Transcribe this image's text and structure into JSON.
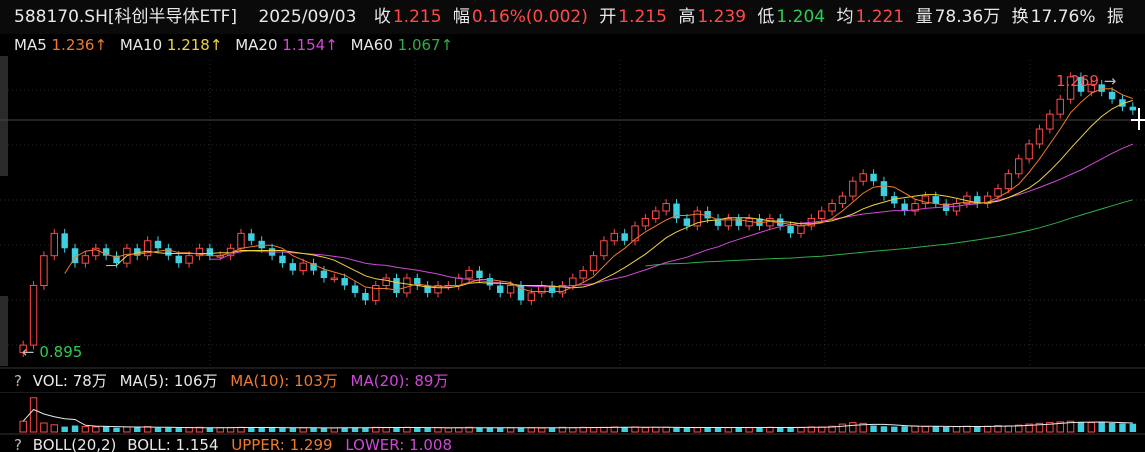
{
  "info": {
    "code": "588170.SH[科创半导体ETF]",
    "date": "2025/09/03",
    "close_label": "收",
    "close": "1.215",
    "change_label": "幅",
    "change": "0.16%(0.002)",
    "open_label": "开",
    "open": "1.215",
    "high_label": "高",
    "high": "1.239",
    "low_label": "低",
    "low": "1.204",
    "avg_label": "均",
    "avg": "1.221",
    "volume_label": "量",
    "volume": "78.36万",
    "turnover_label": "换",
    "turnover": "17.76%",
    "amplitude_label": "振"
  },
  "ma": {
    "ma5_label": "MA5",
    "ma5": "1.236↑",
    "ma10_label": "MA10",
    "ma10": "1.218↑",
    "ma20_label": "MA20",
    "ma20": "1.154↑",
    "ma60_label": "MA60",
    "ma60": "1.067↑"
  },
  "annotations": {
    "high_mark": "1.269",
    "low_mark": "0.895"
  },
  "volume_panel": {
    "help": "?",
    "vol": "VOL: 78万",
    "ma5": "MA(5): 106万",
    "ma10": "MA(10): 103万",
    "ma20": "MA(20): 89万"
  },
  "boll_panel": {
    "help": "?",
    "label": "BOLL(20,2)",
    "boll": "BOLL: 1.154",
    "upper": "UPPER: 1.299",
    "lower": "LOWER: 1.008"
  },
  "colors": {
    "up": "#ff4a4a",
    "down": "#3ecfe0",
    "ma5": "#f07a2a",
    "ma10": "#f0d23a",
    "ma20": "#d048d8",
    "ma60": "#2fae4a",
    "background": "#000000",
    "grid": "#2a2a2a"
  },
  "chart_data": {
    "type": "candlestick",
    "price_range": [
      0.895,
      1.269
    ],
    "closes": [
      0.9,
      0.98,
      1.02,
      1.05,
      1.03,
      1.01,
      1.02,
      1.03,
      1.02,
      1.01,
      1.03,
      1.02,
      1.04,
      1.03,
      1.02,
      1.01,
      1.02,
      1.03,
      1.02,
      1.02,
      1.03,
      1.05,
      1.04,
      1.03,
      1.02,
      1.01,
      1.0,
      1.01,
      1.0,
      0.99,
      0.99,
      0.98,
      0.97,
      0.96,
      0.98,
      0.99,
      0.97,
      0.99,
      0.98,
      0.97,
      0.98,
      0.98,
      0.99,
      1.0,
      0.99,
      0.98,
      0.97,
      0.98,
      0.96,
      0.97,
      0.98,
      0.97,
      0.98,
      0.99,
      1.0,
      1.02,
      1.04,
      1.05,
      1.04,
      1.06,
      1.07,
      1.08,
      1.09,
      1.07,
      1.06,
      1.08,
      1.07,
      1.06,
      1.07,
      1.06,
      1.07,
      1.06,
      1.07,
      1.06,
      1.05,
      1.06,
      1.07,
      1.08,
      1.09,
      1.1,
      1.12,
      1.13,
      1.12,
      1.1,
      1.09,
      1.08,
      1.09,
      1.1,
      1.09,
      1.08,
      1.09,
      1.1,
      1.09,
      1.1,
      1.11,
      1.13,
      1.15,
      1.17,
      1.19,
      1.21,
      1.23,
      1.26,
      1.24,
      1.25,
      1.24,
      1.23,
      1.22,
      1.215
    ],
    "volumes": [
      30,
      95,
      25,
      20,
      15,
      18,
      15,
      14,
      16,
      12,
      14,
      13,
      15,
      12,
      12,
      11,
      12,
      13,
      12,
      12,
      12,
      13,
      13,
      12,
      12,
      11,
      11,
      12,
      12,
      11,
      11,
      12,
      13,
      12,
      13,
      12,
      12,
      13,
      12,
      12,
      12,
      11,
      12,
      13,
      12,
      12,
      11,
      12,
      12,
      12,
      11,
      12,
      13,
      12,
      13,
      12,
      13,
      14,
      13,
      14,
      12,
      13,
      13,
      12,
      13,
      12,
      12,
      13,
      12,
      13,
      12,
      12,
      13,
      12,
      13,
      13,
      14,
      14,
      16,
      22,
      26,
      24,
      18,
      16,
      15,
      16,
      17,
      15,
      16,
      14,
      15,
      16,
      15,
      16,
      18,
      17,
      19,
      22,
      24,
      26,
      28,
      30,
      28,
      26,
      27,
      25,
      24,
      23
    ]
  }
}
